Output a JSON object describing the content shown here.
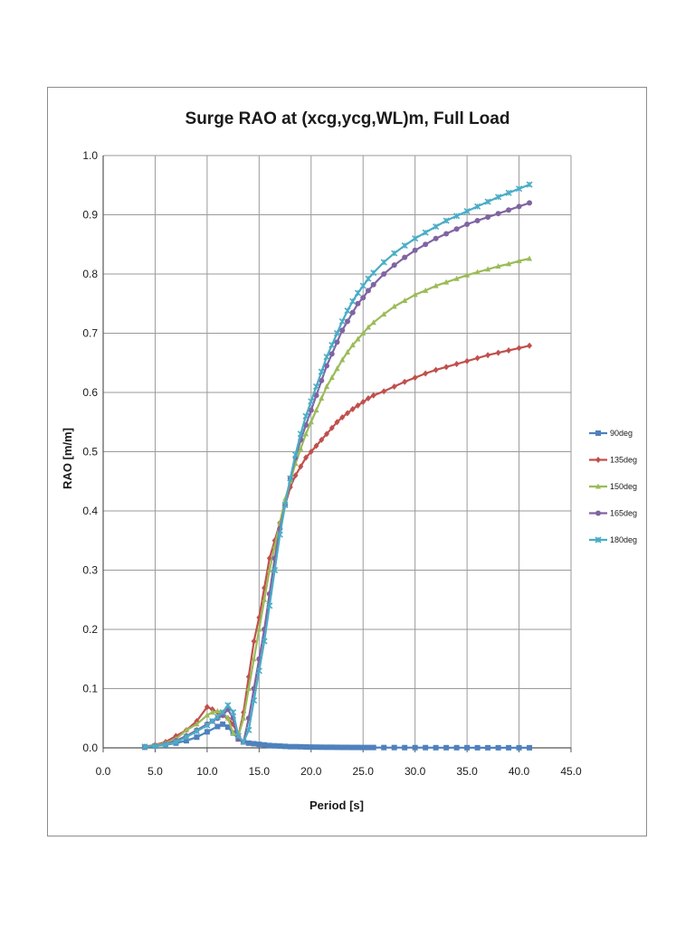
{
  "chart_data": {
    "type": "line",
    "title": "Surge RAO at (xcg,ycg,WL)m, Full Load",
    "xlabel": "Period [s]",
    "ylabel": "RAO [m/m]",
    "xlim": [
      0,
      45
    ],
    "ylim": [
      0,
      1
    ],
    "x_ticks": [
      "0.0",
      "5.0",
      "10.0",
      "15.0",
      "20.0",
      "25.0",
      "30.0",
      "35.0",
      "40.0",
      "45.0"
    ],
    "y_ticks": [
      "0.0",
      "0.1",
      "0.2",
      "0.3",
      "0.4",
      "0.5",
      "0.6",
      "0.7",
      "0.8",
      "0.9",
      "1.0"
    ],
    "grid": true,
    "legend_position": "right",
    "series": [
      {
        "name": "90deg",
        "color": "#4f81bd",
        "marker": "square",
        "points": [
          [
            4,
            0.001
          ],
          [
            5,
            0.003
          ],
          [
            6,
            0.005
          ],
          [
            7,
            0.008
          ],
          [
            8,
            0.012
          ],
          [
            9,
            0.018
          ],
          [
            10,
            0.027
          ],
          [
            11,
            0.036
          ],
          [
            11.5,
            0.04
          ],
          [
            12,
            0.035
          ],
          [
            12.5,
            0.025
          ],
          [
            13,
            0.015
          ],
          [
            13.5,
            0.01
          ],
          [
            14,
            0.008
          ],
          [
            14.5,
            0.007
          ],
          [
            15,
            0.006
          ],
          [
            15.5,
            0.005
          ],
          [
            16,
            0.004
          ],
          [
            16.5,
            0.0035
          ],
          [
            17,
            0.003
          ],
          [
            17.5,
            0.0025
          ],
          [
            18,
            0.002
          ],
          [
            18.5,
            0.002
          ],
          [
            19,
            0.0018
          ],
          [
            19.5,
            0.0015
          ],
          [
            20,
            0.0013
          ],
          [
            20.5,
            0.0012
          ],
          [
            21,
            0.0011
          ],
          [
            21.5,
            0.001
          ],
          [
            22,
            0.001
          ],
          [
            22.5,
            0.0009
          ],
          [
            23,
            0.0008
          ],
          [
            23.5,
            0.0008
          ],
          [
            24,
            0.0007
          ],
          [
            24.5,
            0.0007
          ],
          [
            25,
            0.0006
          ],
          [
            25.5,
            0.0006
          ],
          [
            26,
            0.0006
          ],
          [
            27,
            0.0005
          ],
          [
            28,
            0.0005
          ],
          [
            29,
            0.0004
          ],
          [
            30,
            0.0004
          ],
          [
            31,
            0.0004
          ],
          [
            32,
            0.0003
          ],
          [
            33,
            0.0003
          ],
          [
            34,
            0.0003
          ],
          [
            35,
            0.0003
          ],
          [
            36,
            0.0002
          ],
          [
            37,
            0.0002
          ],
          [
            38,
            0.0002
          ],
          [
            39,
            0.0002
          ],
          [
            40,
            0.0002
          ],
          [
            41,
            0.0002
          ]
        ]
      },
      {
        "name": "135deg",
        "color": "#c0504d",
        "marker": "diamond",
        "points": [
          [
            4,
            0.002
          ],
          [
            5,
            0.005
          ],
          [
            6,
            0.01
          ],
          [
            7,
            0.02
          ],
          [
            8,
            0.03
          ],
          [
            9,
            0.045
          ],
          [
            10,
            0.069
          ],
          [
            10.5,
            0.065
          ],
          [
            11,
            0.06
          ],
          [
            11.5,
            0.055
          ],
          [
            12,
            0.05
          ],
          [
            12.5,
            0.04
          ],
          [
            13,
            0.02
          ],
          [
            13.5,
            0.06
          ],
          [
            14,
            0.12
          ],
          [
            14.5,
            0.18
          ],
          [
            15,
            0.22
          ],
          [
            15.5,
            0.27
          ],
          [
            16,
            0.32
          ],
          [
            16.5,
            0.35
          ],
          [
            17,
            0.38
          ],
          [
            17.5,
            0.41
          ],
          [
            18,
            0.44
          ],
          [
            18.5,
            0.46
          ],
          [
            19,
            0.475
          ],
          [
            19.5,
            0.49
          ],
          [
            20,
            0.5
          ],
          [
            20.5,
            0.51
          ],
          [
            21,
            0.52
          ],
          [
            21.5,
            0.53
          ],
          [
            22,
            0.54
          ],
          [
            22.5,
            0.55
          ],
          [
            23,
            0.558
          ],
          [
            23.5,
            0.565
          ],
          [
            24,
            0.572
          ],
          [
            24.5,
            0.578
          ],
          [
            25,
            0.584
          ],
          [
            25.5,
            0.59
          ],
          [
            26,
            0.595
          ],
          [
            27,
            0.602
          ],
          [
            28,
            0.61
          ],
          [
            29,
            0.618
          ],
          [
            30,
            0.625
          ],
          [
            31,
            0.632
          ],
          [
            32,
            0.638
          ],
          [
            33,
            0.643
          ],
          [
            34,
            0.648
          ],
          [
            35,
            0.653
          ],
          [
            36,
            0.658
          ],
          [
            37,
            0.663
          ],
          [
            38,
            0.667
          ],
          [
            39,
            0.671
          ],
          [
            40,
            0.675
          ],
          [
            41,
            0.679
          ]
        ]
      },
      {
        "name": "150deg",
        "color": "#9bbb59",
        "marker": "triangle",
        "points": [
          [
            4,
            0.002
          ],
          [
            5,
            0.004
          ],
          [
            6,
            0.008
          ],
          [
            7,
            0.015
          ],
          [
            8,
            0.03
          ],
          [
            9,
            0.04
          ],
          [
            10,
            0.055
          ],
          [
            10.5,
            0.06
          ],
          [
            11,
            0.062
          ],
          [
            11.5,
            0.06
          ],
          [
            12,
            0.05
          ],
          [
            12.5,
            0.025
          ],
          [
            13,
            0.02
          ],
          [
            13.5,
            0.05
          ],
          [
            14,
            0.1
          ],
          [
            14.5,
            0.15
          ],
          [
            15,
            0.2
          ],
          [
            15.5,
            0.25
          ],
          [
            16,
            0.3
          ],
          [
            16.5,
            0.34
          ],
          [
            17,
            0.38
          ],
          [
            17.5,
            0.42
          ],
          [
            18,
            0.45
          ],
          [
            18.5,
            0.48
          ],
          [
            19,
            0.505
          ],
          [
            19.5,
            0.53
          ],
          [
            20,
            0.55
          ],
          [
            20.5,
            0.57
          ],
          [
            21,
            0.59
          ],
          [
            21.5,
            0.61
          ],
          [
            22,
            0.625
          ],
          [
            22.5,
            0.64
          ],
          [
            23,
            0.655
          ],
          [
            23.5,
            0.668
          ],
          [
            24,
            0.68
          ],
          [
            24.5,
            0.69
          ],
          [
            25,
            0.7
          ],
          [
            25.5,
            0.71
          ],
          [
            26,
            0.718
          ],
          [
            27,
            0.732
          ],
          [
            28,
            0.745
          ],
          [
            29,
            0.755
          ],
          [
            30,
            0.765
          ],
          [
            31,
            0.772
          ],
          [
            32,
            0.78
          ],
          [
            33,
            0.786
          ],
          [
            34,
            0.792
          ],
          [
            35,
            0.798
          ],
          [
            36,
            0.803
          ],
          [
            37,
            0.808
          ],
          [
            38,
            0.813
          ],
          [
            39,
            0.817
          ],
          [
            40,
            0.822
          ],
          [
            41,
            0.826
          ]
        ]
      },
      {
        "name": "165deg",
        "color": "#8064a2",
        "marker": "circle",
        "points": [
          [
            4,
            0.002
          ],
          [
            5,
            0.003
          ],
          [
            6,
            0.006
          ],
          [
            7,
            0.012
          ],
          [
            8,
            0.02
          ],
          [
            9,
            0.03
          ],
          [
            10,
            0.04
          ],
          [
            10.5,
            0.045
          ],
          [
            11,
            0.05
          ],
          [
            11.5,
            0.055
          ],
          [
            12,
            0.065
          ],
          [
            12.5,
            0.05
          ],
          [
            13,
            0.015
          ],
          [
            13.5,
            0.01
          ],
          [
            14,
            0.05
          ],
          [
            14.5,
            0.1
          ],
          [
            15,
            0.15
          ],
          [
            15.5,
            0.2
          ],
          [
            16,
            0.26
          ],
          [
            16.5,
            0.32
          ],
          [
            17,
            0.37
          ],
          [
            17.5,
            0.41
          ],
          [
            18,
            0.455
          ],
          [
            18.5,
            0.49
          ],
          [
            19,
            0.52
          ],
          [
            19.5,
            0.545
          ],
          [
            20,
            0.57
          ],
          [
            20.5,
            0.595
          ],
          [
            21,
            0.62
          ],
          [
            21.5,
            0.645
          ],
          [
            22,
            0.665
          ],
          [
            22.5,
            0.685
          ],
          [
            23,
            0.705
          ],
          [
            23.5,
            0.72
          ],
          [
            24,
            0.735
          ],
          [
            24.5,
            0.75
          ],
          [
            25,
            0.76
          ],
          [
            25.5,
            0.772
          ],
          [
            26,
            0.782
          ],
          [
            27,
            0.8
          ],
          [
            28,
            0.815
          ],
          [
            29,
            0.828
          ],
          [
            30,
            0.84
          ],
          [
            31,
            0.85
          ],
          [
            32,
            0.86
          ],
          [
            33,
            0.868
          ],
          [
            34,
            0.876
          ],
          [
            35,
            0.884
          ],
          [
            36,
            0.89
          ],
          [
            37,
            0.896
          ],
          [
            38,
            0.902
          ],
          [
            39,
            0.908
          ],
          [
            40,
            0.914
          ],
          [
            41,
            0.92
          ]
        ]
      },
      {
        "name": "180deg",
        "color": "#4bacc6",
        "marker": "star",
        "points": [
          [
            4,
            0.002
          ],
          [
            5,
            0.003
          ],
          [
            6,
            0.005
          ],
          [
            7,
            0.01
          ],
          [
            8,
            0.018
          ],
          [
            9,
            0.028
          ],
          [
            10,
            0.038
          ],
          [
            10.5,
            0.045
          ],
          [
            11,
            0.052
          ],
          [
            11.5,
            0.06
          ],
          [
            12,
            0.072
          ],
          [
            12.5,
            0.06
          ],
          [
            13,
            0.02
          ],
          [
            13.5,
            0.01
          ],
          [
            14,
            0.03
          ],
          [
            14.5,
            0.08
          ],
          [
            15,
            0.13
          ],
          [
            15.5,
            0.18
          ],
          [
            16,
            0.24
          ],
          [
            16.5,
            0.3
          ],
          [
            17,
            0.36
          ],
          [
            17.5,
            0.41
          ],
          [
            18,
            0.455
          ],
          [
            18.5,
            0.495
          ],
          [
            19,
            0.53
          ],
          [
            19.5,
            0.56
          ],
          [
            20,
            0.585
          ],
          [
            20.5,
            0.61
          ],
          [
            21,
            0.635
          ],
          [
            21.5,
            0.66
          ],
          [
            22,
            0.68
          ],
          [
            22.5,
            0.7
          ],
          [
            23,
            0.72
          ],
          [
            23.5,
            0.738
          ],
          [
            24,
            0.754
          ],
          [
            24.5,
            0.768
          ],
          [
            25,
            0.78
          ],
          [
            25.5,
            0.792
          ],
          [
            26,
            0.802
          ],
          [
            27,
            0.82
          ],
          [
            28,
            0.835
          ],
          [
            29,
            0.848
          ],
          [
            30,
            0.86
          ],
          [
            31,
            0.87
          ],
          [
            32,
            0.88
          ],
          [
            33,
            0.89
          ],
          [
            34,
            0.898
          ],
          [
            35,
            0.906
          ],
          [
            36,
            0.914
          ],
          [
            37,
            0.922
          ],
          [
            38,
            0.93
          ],
          [
            39,
            0.937
          ],
          [
            40,
            0.944
          ],
          [
            41,
            0.951
          ]
        ]
      }
    ]
  }
}
